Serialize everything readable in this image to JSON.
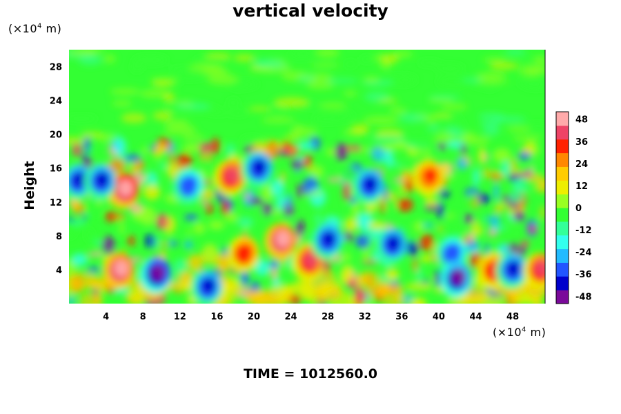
{
  "chart_data": {
    "type": "heatmap",
    "title": "vertical velocity",
    "ylabel": "Height",
    "y_unit": {
      "pre": "(×10",
      "exp": "4",
      "post": " m)"
    },
    "x_unit": {
      "pre": "(×10",
      "exp": "4",
      "post": " m)"
    },
    "xlim": [
      0,
      51.5
    ],
    "ylim": [
      0,
      30
    ],
    "x_ticks": [
      4,
      8,
      12,
      16,
      20,
      24,
      28,
      32,
      36,
      40,
      44,
      48
    ],
    "y_ticks": [
      4,
      8,
      12,
      16,
      20,
      24,
      28
    ],
    "colorbar": {
      "ticks": [
        48,
        36,
        24,
        12,
        0,
        -12,
        -24,
        -36,
        -48
      ],
      "range": [
        -52,
        52
      ],
      "colors": [
        "#7a0a9a",
        "#0000cc",
        "#2255ff",
        "#22bbff",
        "#33ffee",
        "#33ff99",
        "#33ff33",
        "#99ff22",
        "#eeee00",
        "#ffcc00",
        "#ff8800",
        "#ff2200",
        "#ee4466",
        "#ffaaaa"
      ]
    },
    "features": [
      {
        "x": 6,
        "y": 13.5,
        "value": 50
      },
      {
        "x": 5.5,
        "y": 4,
        "value": 45
      },
      {
        "x": 9.5,
        "y": 3.5,
        "value": -50
      },
      {
        "x": 1,
        "y": 14.5,
        "value": -40
      },
      {
        "x": 3.5,
        "y": 14.5,
        "value": -40
      },
      {
        "x": 17.5,
        "y": 15,
        "value": 42
      },
      {
        "x": 20.5,
        "y": 16,
        "value": -40
      },
      {
        "x": 23,
        "y": 7.5,
        "value": 48
      },
      {
        "x": 13,
        "y": 14,
        "value": -36
      },
      {
        "x": 19,
        "y": 6,
        "value": 35
      },
      {
        "x": 26,
        "y": 5,
        "value": 38
      },
      {
        "x": 32.5,
        "y": 14,
        "value": -42
      },
      {
        "x": 41.5,
        "y": 6,
        "value": -35
      },
      {
        "x": 46,
        "y": 4,
        "value": 36
      },
      {
        "x": 48,
        "y": 4,
        "value": -42
      },
      {
        "x": 51,
        "y": 4,
        "value": 38
      },
      {
        "x": 42,
        "y": 3,
        "value": -45
      },
      {
        "x": 35,
        "y": 7,
        "value": -38
      },
      {
        "x": 39,
        "y": 15,
        "value": 30
      },
      {
        "x": 15,
        "y": 2,
        "value": -40
      },
      {
        "x": 28,
        "y": 7.5,
        "value": -38
      }
    ]
  },
  "footer": "TIME = 1012560.0"
}
